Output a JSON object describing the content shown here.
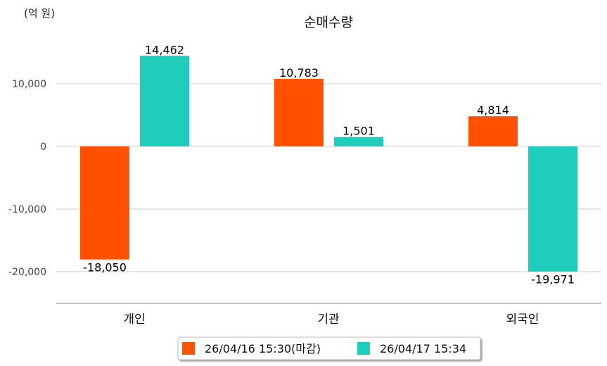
{
  "chart_data": {
    "type": "bar",
    "title": "순매수량",
    "unit_label": "(억 원)",
    "categories": [
      "개인",
      "기관",
      "외국인"
    ],
    "series": [
      {
        "name": "26/04/16 15:30(마감)",
        "color": "#ff5100",
        "values": [
          -18050,
          10783,
          4814
        ],
        "labels": [
          "-18,050",
          "10,783",
          "4,814"
        ]
      },
      {
        "name": "26/04/17 15:34",
        "color": "#1ecdbb",
        "values": [
          14462,
          1501,
          -19971
        ],
        "labels": [
          "14,462",
          "1,501",
          "-19,971"
        ]
      }
    ],
    "yticks": [
      10000,
      0,
      -10000,
      -20000
    ],
    "ytick_labels": [
      "10,000",
      "0",
      "-10,000",
      "-20,000"
    ],
    "ylim": [
      -25000,
      20000
    ],
    "grid": true,
    "legend": "bottom-center"
  }
}
